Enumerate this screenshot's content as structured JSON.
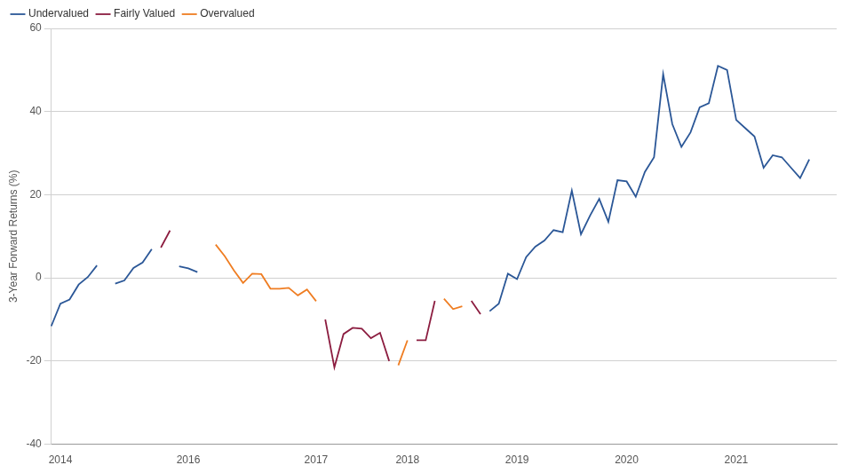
{
  "chart_data": {
    "type": "line",
    "y_label": "3-Year Forward Returns (%)",
    "categories": [
      null,
      "2014",
      null,
      null,
      null,
      null,
      null,
      null,
      null,
      null,
      null,
      null,
      null,
      null,
      null,
      "2016",
      null,
      null,
      null,
      null,
      null,
      null,
      null,
      null,
      null,
      null,
      null,
      null,
      null,
      "2017",
      null,
      null,
      null,
      null,
      null,
      null,
      null,
      null,
      null,
      "2018",
      null,
      null,
      null,
      null,
      null,
      null,
      null,
      null,
      null,
      null,
      null,
      "2019",
      null,
      null,
      null,
      null,
      null,
      null,
      null,
      null,
      null,
      null,
      null,
      "2020",
      null,
      null,
      null,
      null,
      null,
      null,
      null,
      null,
      null,
      null,
      null,
      "2021",
      null,
      null,
      null,
      null,
      null,
      null,
      null,
      null,
      null,
      null,
      null
    ],
    "series": [
      {
        "name": "Undervalued",
        "color": "#2b5797",
        "values": [
          -11.6,
          -6.2,
          -5.2,
          -1.6,
          0.2,
          3.0,
          null,
          -1.4,
          -0.6,
          2.4,
          3.7,
          6.9,
          null,
          null,
          2.8,
          2.3,
          1.4,
          null,
          null,
          null,
          null,
          null,
          null,
          null,
          null,
          null,
          null,
          null,
          null,
          null,
          null,
          null,
          null,
          null,
          null,
          null,
          null,
          null,
          null,
          null,
          null,
          null,
          null,
          null,
          null,
          null,
          null,
          null,
          -8,
          -6.2,
          1,
          -0.3,
          5,
          7.5,
          9,
          11.5,
          11,
          21,
          10.5,
          15,
          19,
          13.5,
          23.5,
          23.2,
          19.5,
          25.5,
          29,
          49,
          37,
          31.5,
          35,
          41,
          42,
          51,
          50,
          38,
          36,
          34,
          26.5,
          29.5,
          29,
          26.5,
          24,
          28.5,
          null,
          null,
          null
        ]
      },
      {
        "name": "Fairly Valued",
        "color": "#8c1d40",
        "values": [
          null,
          null,
          null,
          null,
          null,
          null,
          null,
          null,
          null,
          null,
          null,
          null,
          7.3,
          11.4,
          null,
          null,
          null,
          null,
          null,
          null,
          null,
          null,
          null,
          null,
          null,
          null,
          null,
          null,
          null,
          null,
          -10,
          -21.5,
          -13.5,
          -12,
          -12.2,
          -14.5,
          -13.2,
          -20,
          null,
          null,
          -15,
          -15,
          -5.5,
          null,
          null,
          null,
          -5.5,
          -8.7,
          null,
          null,
          null,
          null,
          null,
          null,
          null,
          null,
          null,
          null,
          null,
          null,
          null,
          null,
          null,
          null,
          null,
          null,
          null,
          null,
          null,
          null,
          null,
          null,
          null,
          null,
          null,
          null,
          null,
          null,
          null,
          null,
          null,
          null,
          null,
          null,
          null,
          null,
          null
        ]
      },
      {
        "name": "Overvalued",
        "color": "#ef7d22",
        "values": [
          null,
          null,
          null,
          null,
          null,
          null,
          null,
          null,
          null,
          null,
          null,
          null,
          null,
          null,
          null,
          null,
          null,
          null,
          8,
          5.2,
          1.8,
          -1.2,
          1.0,
          0.9,
          -2.6,
          -2.6,
          -2.4,
          -4.2,
          -2.8,
          -5.6,
          null,
          null,
          null,
          null,
          null,
          null,
          null,
          null,
          -21,
          -15,
          null,
          null,
          null,
          -5,
          -7.5,
          -6.8,
          null,
          null,
          null,
          null,
          null,
          null,
          null,
          null,
          null,
          null,
          null,
          null,
          null,
          null,
          null,
          null,
          null,
          null,
          null,
          null,
          null,
          null,
          null,
          null,
          null,
          null,
          null,
          null,
          null,
          null,
          null,
          null,
          null,
          null,
          null,
          null,
          null,
          null,
          null,
          null,
          null
        ]
      }
    ],
    "ylim": [
      -40,
      60
    ],
    "yticks": [
      -40,
      -20,
      0,
      20,
      40,
      60
    ],
    "grid": true,
    "legend": "upper left"
  }
}
